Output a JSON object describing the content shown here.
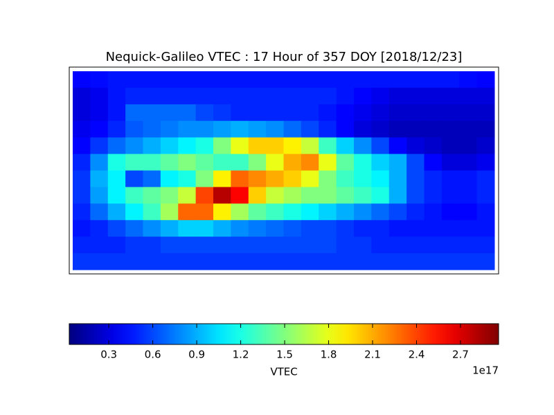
{
  "chart_data": {
    "type": "heatmap",
    "title": "Nequick-Galileo VTEC : 17 Hour of 357 DOY [2018/12/23]",
    "colormap": "jet",
    "values": [
      [
        0.4,
        0.42,
        0.45,
        0.45,
        0.45,
        0.45,
        0.45,
        0.45,
        0.45,
        0.45,
        0.45,
        0.45,
        0.45,
        0.45,
        0.45,
        0.45,
        0.45,
        0.45,
        0.45,
        0.45,
        0.45,
        0.45,
        0.42,
        0.4
      ],
      [
        0.3,
        0.35,
        0.45,
        0.5,
        0.5,
        0.5,
        0.5,
        0.5,
        0.5,
        0.5,
        0.5,
        0.5,
        0.5,
        0.5,
        0.5,
        0.45,
        0.4,
        0.35,
        0.3,
        0.3,
        0.3,
        0.3,
        0.3,
        0.3
      ],
      [
        0.3,
        0.35,
        0.45,
        0.7,
        0.7,
        0.7,
        0.7,
        0.6,
        0.55,
        0.5,
        0.5,
        0.5,
        0.5,
        0.5,
        0.45,
        0.4,
        0.35,
        0.3,
        0.25,
        0.25,
        0.25,
        0.25,
        0.25,
        0.25
      ],
      [
        0.35,
        0.4,
        0.5,
        0.65,
        0.7,
        0.75,
        0.8,
        0.8,
        0.85,
        0.9,
        0.85,
        0.8,
        0.7,
        0.6,
        0.5,
        0.4,
        0.3,
        0.25,
        0.2,
        0.2,
        0.2,
        0.2,
        0.2,
        0.2
      ],
      [
        0.4,
        0.55,
        0.7,
        0.8,
        0.9,
        1.0,
        1.1,
        1.2,
        1.5,
        1.8,
        2.0,
        2.0,
        1.9,
        1.7,
        1.3,
        1.0,
        0.8,
        0.6,
        0.4,
        0.3,
        0.25,
        0.2,
        0.2,
        0.25
      ],
      [
        0.5,
        0.8,
        1.2,
        1.3,
        1.3,
        1.4,
        1.5,
        1.4,
        1.3,
        1.3,
        1.5,
        1.8,
        2.1,
        2.2,
        1.8,
        1.4,
        1.2,
        1.0,
        0.9,
        0.6,
        0.4,
        0.3,
        0.3,
        0.35
      ],
      [
        0.55,
        0.9,
        1.1,
        0.6,
        0.7,
        1.1,
        1.2,
        1.5,
        1.9,
        2.3,
        2.2,
        2.1,
        2.0,
        1.8,
        1.5,
        1.3,
        1.2,
        1.1,
        0.9,
        0.6,
        0.5,
        0.45,
        0.45,
        0.5
      ],
      [
        0.55,
        0.85,
        1.1,
        1.3,
        1.4,
        1.5,
        1.7,
        2.4,
        2.8,
        2.6,
        2.0,
        1.7,
        1.6,
        1.5,
        1.5,
        1.4,
        1.3,
        1.2,
        0.9,
        0.6,
        0.5,
        0.45,
        0.45,
        0.5
      ],
      [
        0.5,
        0.7,
        0.9,
        1.1,
        1.3,
        1.6,
        2.3,
        2.3,
        1.9,
        1.6,
        1.4,
        1.3,
        1.2,
        1.1,
        1.0,
        0.9,
        0.8,
        0.7,
        0.6,
        0.5,
        0.45,
        0.4,
        0.4,
        0.45
      ],
      [
        0.45,
        0.5,
        0.6,
        0.7,
        0.8,
        0.9,
        1.0,
        1.0,
        0.9,
        0.8,
        0.75,
        0.7,
        0.65,
        0.6,
        0.6,
        0.55,
        0.5,
        0.5,
        0.45,
        0.45,
        0.45,
        0.45,
        0.45,
        0.45
      ],
      [
        0.5,
        0.5,
        0.5,
        0.55,
        0.55,
        0.6,
        0.6,
        0.6,
        0.6,
        0.6,
        0.6,
        0.6,
        0.6,
        0.6,
        0.6,
        0.55,
        0.55,
        0.5,
        0.5,
        0.5,
        0.5,
        0.5,
        0.5,
        0.5
      ],
      [
        0.55,
        0.55,
        0.55,
        0.55,
        0.55,
        0.55,
        0.55,
        0.55,
        0.55,
        0.55,
        0.55,
        0.55,
        0.55,
        0.55,
        0.55,
        0.55,
        0.55,
        0.55,
        0.55,
        0.55,
        0.55,
        0.55,
        0.55,
        0.55
      ]
    ],
    "colorbar": {
      "label": "VTEC",
      "lim": [
        0.03,
        2.96
      ],
      "ticks": [
        0.3,
        0.6,
        0.9,
        1.2,
        1.5,
        1.8,
        2.1,
        2.4,
        2.7
      ],
      "offset_label": "1e17"
    }
  }
}
